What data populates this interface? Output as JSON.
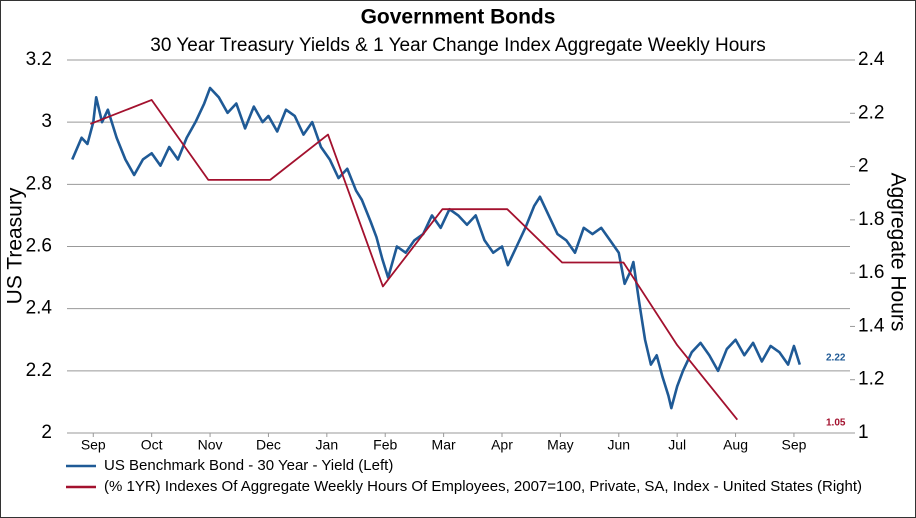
{
  "chart_data": {
    "type": "line",
    "title": "Government Bonds",
    "subtitle": "30 Year Treasury Yields & 1 Year Change Index Aggregate Weekly Hours",
    "y_label": "US Treasury",
    "y2_label": "Aggregate Hours",
    "xlim": [
      -0.45,
      12.96
    ],
    "xticks": [
      {
        "value": 0,
        "label": "Sep"
      },
      {
        "value": 1,
        "label": "Oct"
      },
      {
        "value": 2,
        "label": "Nov"
      },
      {
        "value": 3,
        "label": "Dec"
      },
      {
        "value": 4,
        "label": "Jan"
      },
      {
        "value": 5,
        "label": "Feb"
      },
      {
        "value": 6,
        "label": "Mar"
      },
      {
        "value": 7,
        "label": "Apr"
      },
      {
        "value": 8,
        "label": "May"
      },
      {
        "value": 9,
        "label": "Jun"
      },
      {
        "value": 10,
        "label": "Jul"
      },
      {
        "value": 11,
        "label": "Aug"
      },
      {
        "value": 12,
        "label": "Sep"
      }
    ],
    "ylim": [
      2,
      3.2
    ],
    "yticks": [
      2,
      2.2,
      2.4,
      2.6,
      2.8,
      3,
      3.2
    ],
    "y2lim": [
      1,
      2.4
    ],
    "y2ticks": [
      1,
      1.2,
      1.4,
      1.6,
      1.8,
      2,
      2.2,
      2.4
    ],
    "grid": true,
    "series": [
      {
        "name": "US Benchmark Bond - 30 Year - Yield  (Left)",
        "color": "#1f5a96",
        "axis": "y",
        "x": [
          -0.36,
          -0.2,
          -0.1,
          0.0,
          0.05,
          0.15,
          0.25,
          0.4,
          0.55,
          0.7,
          0.85,
          1.0,
          1.15,
          1.3,
          1.45,
          1.6,
          1.75,
          1.9,
          2.0,
          2.15,
          2.3,
          2.45,
          2.6,
          2.75,
          2.9,
          3.0,
          3.15,
          3.3,
          3.45,
          3.6,
          3.75,
          3.9,
          4.05,
          4.2,
          4.35,
          4.5,
          4.6,
          4.75,
          4.85,
          4.95,
          5.05,
          5.2,
          5.35,
          5.5,
          5.65,
          5.8,
          5.95,
          6.1,
          6.25,
          6.4,
          6.55,
          6.7,
          6.85,
          7.0,
          7.1,
          7.25,
          7.4,
          7.55,
          7.65,
          7.8,
          7.95,
          8.1,
          8.25,
          8.4,
          8.55,
          8.7,
          8.85,
          9.0,
          9.1,
          9.2,
          9.25,
          9.35,
          9.45,
          9.55,
          9.65,
          9.75,
          9.85,
          9.9,
          10.0,
          10.1,
          10.25,
          10.4,
          10.55,
          10.7,
          10.85,
          11.0,
          11.15,
          11.3,
          11.45,
          11.6,
          11.75,
          11.9,
          12.0,
          12.1
        ],
        "values": [
          2.88,
          2.95,
          2.93,
          3.0,
          3.08,
          3.0,
          3.04,
          2.95,
          2.88,
          2.83,
          2.88,
          2.9,
          2.86,
          2.92,
          2.88,
          2.95,
          3.0,
          3.06,
          3.11,
          3.08,
          3.03,
          3.06,
          2.98,
          3.05,
          3.0,
          3.02,
          2.97,
          3.04,
          3.02,
          2.96,
          3.0,
          2.92,
          2.88,
          2.82,
          2.85,
          2.78,
          2.75,
          2.68,
          2.63,
          2.56,
          2.5,
          2.6,
          2.58,
          2.62,
          2.64,
          2.7,
          2.66,
          2.72,
          2.7,
          2.67,
          2.7,
          2.62,
          2.58,
          2.6,
          2.54,
          2.6,
          2.66,
          2.73,
          2.76,
          2.7,
          2.64,
          2.62,
          2.58,
          2.66,
          2.64,
          2.66,
          2.62,
          2.58,
          2.48,
          2.52,
          2.55,
          2.42,
          2.3,
          2.22,
          2.25,
          2.18,
          2.12,
          2.08,
          2.15,
          2.2,
          2.26,
          2.29,
          2.25,
          2.2,
          2.27,
          2.3,
          2.25,
          2.29,
          2.23,
          2.28,
          2.26,
          2.22,
          2.28,
          2.22
        ]
      },
      {
        "name": "(% 1YR) Indexes Of Aggregate Weekly Hours Of Employees, 2007=100, Private, SA, Index - United States  (Right)",
        "color": "#a3112e",
        "axis": "y2",
        "x": [
          -0.05,
          1.0,
          1.97,
          3.03,
          4.02,
          4.96,
          5.98,
          7.09,
          8.03,
          9.08,
          10.0,
          11.03
        ],
        "values": [
          2.16,
          2.25,
          1.95,
          1.95,
          2.12,
          1.55,
          1.84,
          1.84,
          1.64,
          1.64,
          1.33,
          1.05
        ]
      }
    ]
  }
}
